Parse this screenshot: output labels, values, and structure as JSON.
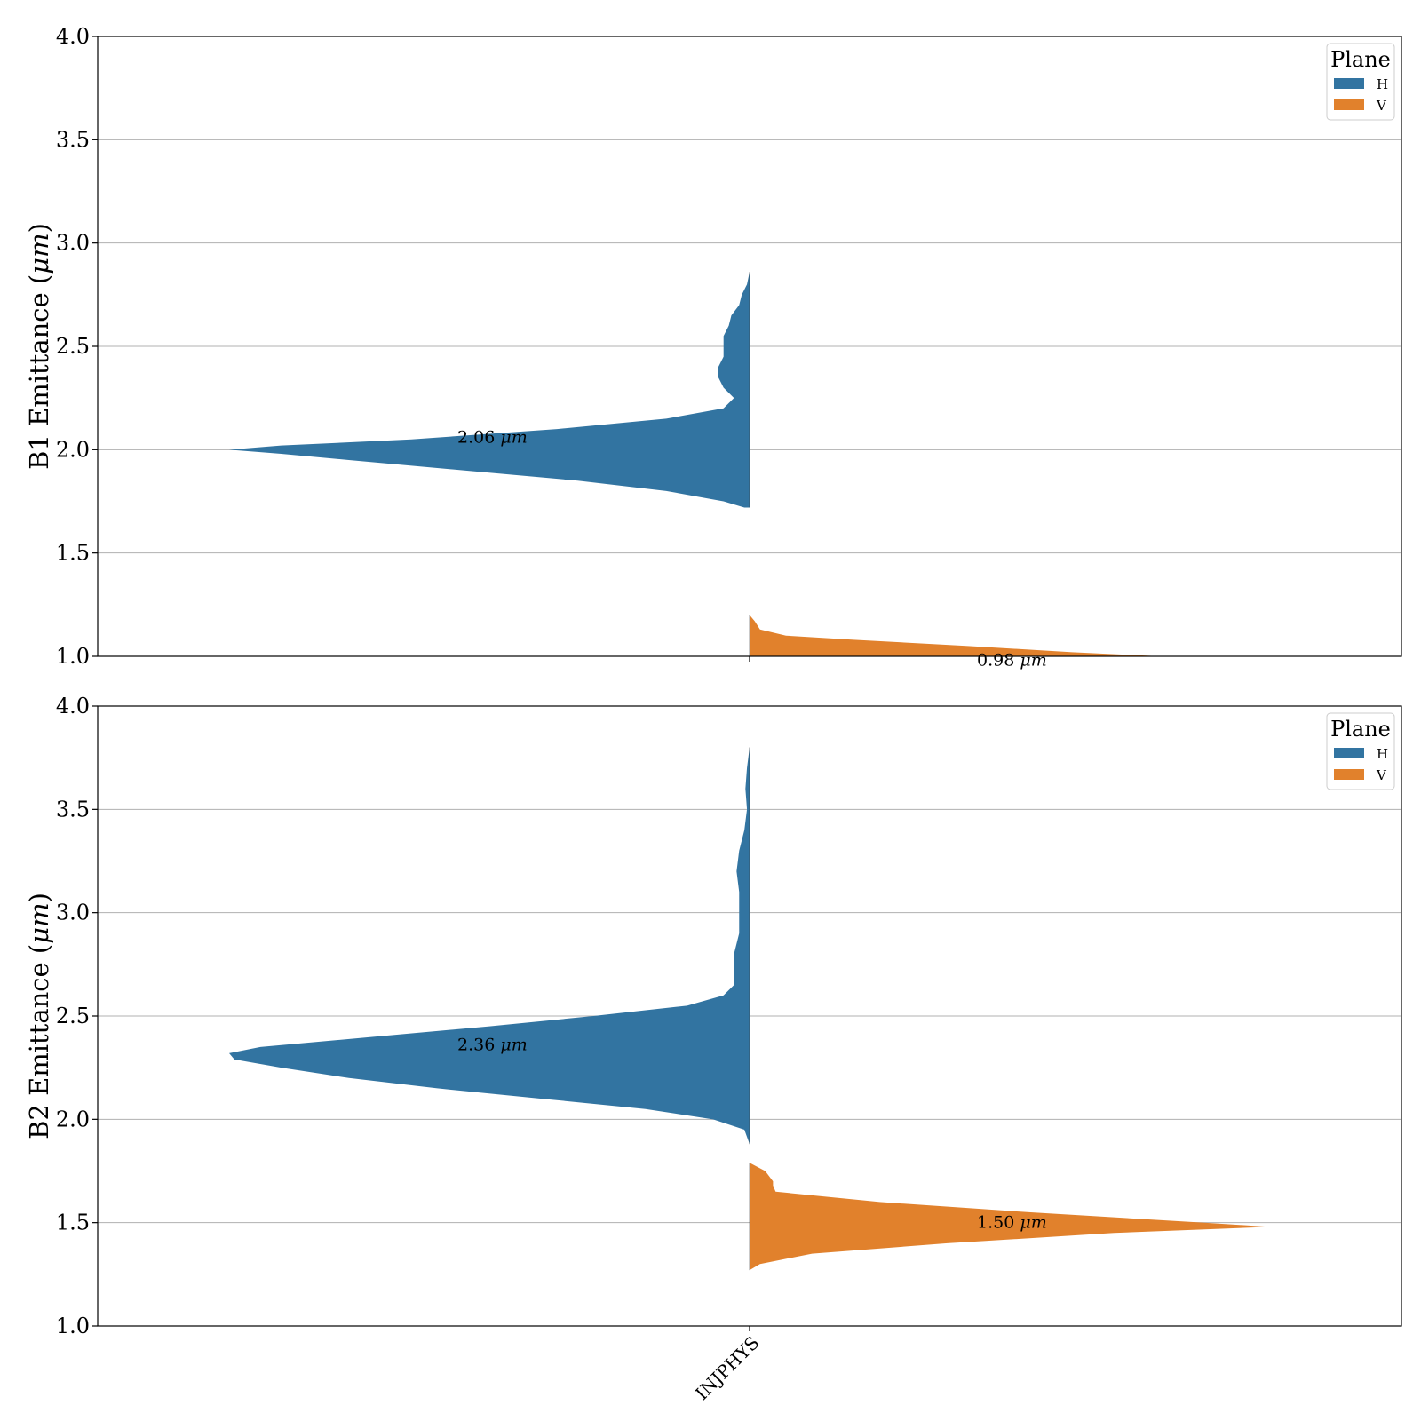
{
  "chart_data": [
    {
      "type": "violin",
      "ylabel": "B1 Emittance (μm)",
      "ylabel_parts": [
        "B1 Emittance (",
        "μm",
        ")"
      ],
      "ylim": [
        1.0,
        4.0
      ],
      "yticks": [
        "1.0",
        "1.5",
        "2.0",
        "2.5",
        "3.0",
        "3.5",
        "4.0"
      ],
      "grid": true,
      "legend": {
        "title": "Plane",
        "entries": [
          "H",
          "V"
        ],
        "placement": "top-right"
      },
      "categories": [
        "INJPHYS"
      ],
      "series": [
        {
          "name": "H",
          "color": "#3274a1",
          "median_label_value": "2.06",
          "median_label_unit": "μm",
          "density": [
            [
              1.72,
              0.01
            ],
            [
              1.75,
              0.05
            ],
            [
              1.8,
              0.16
            ],
            [
              1.85,
              0.33
            ],
            [
              1.9,
              0.55
            ],
            [
              1.95,
              0.77
            ],
            [
              1.98,
              0.9
            ],
            [
              2.0,
              1.0
            ],
            [
              2.02,
              0.9
            ],
            [
              2.05,
              0.65
            ],
            [
              2.1,
              0.37
            ],
            [
              2.15,
              0.16
            ],
            [
              2.2,
              0.05
            ],
            [
              2.25,
              0.03
            ],
            [
              2.3,
              0.05
            ],
            [
              2.35,
              0.06
            ],
            [
              2.4,
              0.06
            ],
            [
              2.45,
              0.05
            ],
            [
              2.5,
              0.05
            ],
            [
              2.55,
              0.05
            ],
            [
              2.6,
              0.04
            ],
            [
              2.65,
              0.035
            ],
            [
              2.7,
              0.02
            ],
            [
              2.75,
              0.015
            ],
            [
              2.8,
              0.005
            ],
            [
              2.86,
              0.0
            ]
          ]
        },
        {
          "name": "V",
          "color": "#e1812c",
          "median_label_value": "0.98",
          "median_label_unit": "μm",
          "density": [
            [
              1.0,
              0.79
            ],
            [
              1.02,
              0.62
            ],
            [
              1.05,
              0.42
            ],
            [
              1.08,
              0.2
            ],
            [
              1.1,
              0.07
            ],
            [
              1.13,
              0.02
            ],
            [
              1.17,
              0.01
            ],
            [
              1.2,
              0.0
            ]
          ]
        }
      ]
    },
    {
      "type": "violin",
      "ylabel": "B2 Emittance (μm)",
      "ylabel_parts": [
        "B2 Emittance (",
        "μm",
        ")"
      ],
      "ylim": [
        1.0,
        4.0
      ],
      "yticks": [
        "1.0",
        "1.5",
        "2.0",
        "2.5",
        "3.0",
        "3.5",
        "4.0"
      ],
      "grid": true,
      "legend": {
        "title": "Plane",
        "entries": [
          "H",
          "V"
        ],
        "placement": "top-right"
      },
      "categories": [
        "INJPHYS"
      ],
      "series": [
        {
          "name": "H",
          "color": "#3274a1",
          "median_label_value": "2.36",
          "median_label_unit": "μm",
          "density": [
            [
              1.88,
              0.0
            ],
            [
              1.95,
              0.01
            ],
            [
              2.0,
              0.07
            ],
            [
              2.05,
              0.2
            ],
            [
              2.1,
              0.4
            ],
            [
              2.15,
              0.6
            ],
            [
              2.2,
              0.77
            ],
            [
              2.25,
              0.9
            ],
            [
              2.29,
              0.99
            ],
            [
              2.32,
              1.0
            ],
            [
              2.35,
              0.94
            ],
            [
              2.4,
              0.72
            ],
            [
              2.45,
              0.5
            ],
            [
              2.5,
              0.3
            ],
            [
              2.55,
              0.12
            ],
            [
              2.6,
              0.05
            ],
            [
              2.65,
              0.03
            ],
            [
              2.7,
              0.03
            ],
            [
              2.8,
              0.03
            ],
            [
              2.9,
              0.02
            ],
            [
              3.0,
              0.02
            ],
            [
              3.1,
              0.02
            ],
            [
              3.2,
              0.025
            ],
            [
              3.3,
              0.02
            ],
            [
              3.4,
              0.01
            ],
            [
              3.5,
              0.005
            ],
            [
              3.6,
              0.008
            ],
            [
              3.7,
              0.005
            ],
            [
              3.8,
              0.0
            ]
          ]
        },
        {
          "name": "V",
          "color": "#e1812c",
          "median_label_value": "1.50",
          "median_label_unit": "μm",
          "density": [
            [
              1.27,
              0.0
            ],
            [
              1.3,
              0.02
            ],
            [
              1.35,
              0.12
            ],
            [
              1.4,
              0.38
            ],
            [
              1.45,
              0.7
            ],
            [
              1.48,
              1.0
            ],
            [
              1.5,
              0.87
            ],
            [
              1.55,
              0.54
            ],
            [
              1.6,
              0.25
            ],
            [
              1.65,
              0.05
            ],
            [
              1.68,
              0.045
            ],
            [
              1.7,
              0.045
            ],
            [
              1.75,
              0.03
            ],
            [
              1.79,
              0.0
            ]
          ]
        }
      ]
    }
  ]
}
